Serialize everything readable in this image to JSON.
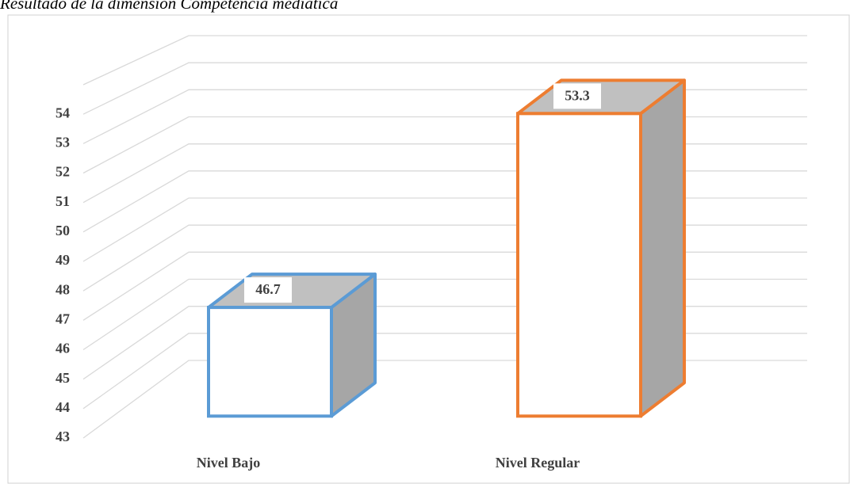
{
  "chart_data": {
    "type": "bar3d",
    "title": "Resultado de la dimensión Competencia mediática",
    "categories": [
      "Nivel Bajo",
      "Nivel Regular"
    ],
    "values": [
      46.7,
      53.3
    ],
    "colors": [
      "#5b9bd5",
      "#ed7d31"
    ],
    "ylim": [
      43,
      55
    ],
    "yticks": [
      43,
      44,
      45,
      46,
      47,
      48,
      49,
      50,
      51,
      52,
      53,
      54
    ],
    "grid": true
  }
}
